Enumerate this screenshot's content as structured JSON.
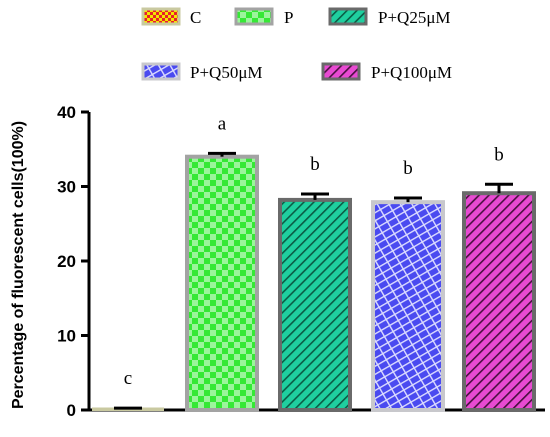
{
  "chart_data": {
    "type": "bar",
    "title": "",
    "xlabel": "",
    "ylabel": "Percentage of fluorescent cells(100%)",
    "ylim": [
      0,
      40
    ],
    "yticks": [
      0,
      10,
      20,
      30,
      40
    ],
    "categories": [
      "C",
      "P",
      "P+Q25μM",
      "P+Q50μM",
      "P+Q100μM"
    ],
    "values": [
      0.2,
      34.0,
      28.2,
      27.9,
      29.1
    ],
    "errors": [
      0.05,
      0.45,
      0.8,
      0.55,
      1.2
    ],
    "significance": [
      "c",
      "a",
      "b",
      "b",
      "b"
    ],
    "legend_placement": "top",
    "grid": false,
    "series_styles": [
      {
        "fill": "#f2e600",
        "accent": "#e8202a",
        "border": "#c9c9a0",
        "pattern": "check"
      },
      {
        "fill": "#35e835",
        "accent": "#9bf59b",
        "border": "#a3a3a3",
        "pattern": "check"
      },
      {
        "fill": "#1fcf9f",
        "accent": "#0a5c45",
        "border": "#6a6a6a",
        "pattern": "diag"
      },
      {
        "fill": "#4a4af0",
        "accent": "#dcdcff",
        "border": "#c8c8cc",
        "pattern": "brick"
      },
      {
        "fill": "#e84ad2",
        "accent": "#4a1040",
        "border": "#6a6a6a",
        "pattern": "diag"
      }
    ]
  }
}
